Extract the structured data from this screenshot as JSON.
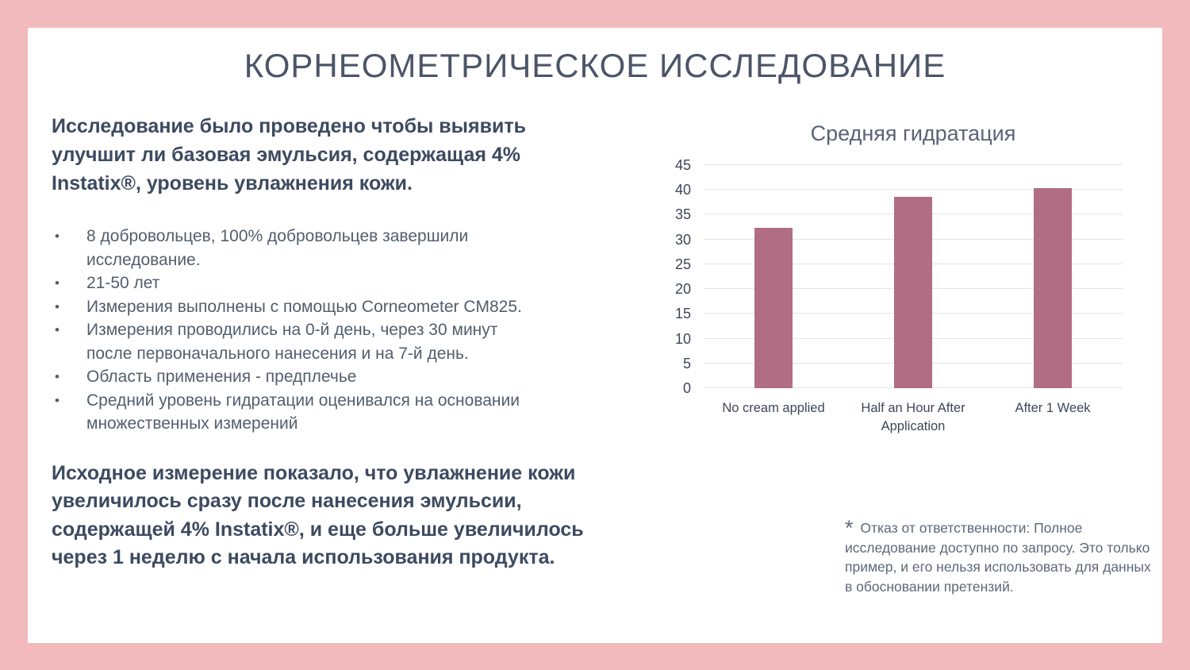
{
  "slide": {
    "title": "КОРНЕОМЕТРИЧЕСКОЕ ИССЛЕДОВАНИЕ",
    "intro": "Исследование было проведено чтобы выявить улучшит ли базовая эмульсия, содержащая 4% Instatix®, уровень увлажнения кожи.",
    "bullets": [
      "8 добровольцев, 100% добровольцев завершили исследование.",
      "21-50 лет",
      "Измерения выполнены с помощью Corneometer CM825.",
      "Измерения проводились на 0-й день, через 30 минут после первоначального нанесения и на 7-й день.",
      "Область применения - предплечье",
      "Средний уровень гидратации оценивался на основании множественных измерений"
    ],
    "conclusion": "Исходное измерение показало, что увлажнение кожи увеличилось сразу после нанесения эмульсии, содержащей 4% Instatix®, и еще больше увеличилось через 1 неделю с начала использования продукта.",
    "disclaimer_star": "*",
    "disclaimer": "Отказ от ответственности: Полное исследование доступно по запросу. Это только пример, и его нельзя использовать для данных в обосновании претензий."
  },
  "chart_data": {
    "type": "bar",
    "title": "Средняя гидратация",
    "categories": [
      "No cream applied",
      "Half an Hour After Application",
      "After 1 Week"
    ],
    "values": [
      32.4,
      38.6,
      40.4
    ],
    "xlabel": "",
    "ylabel": "",
    "ylim": [
      0,
      45
    ],
    "ytick_step": 5,
    "grid": true,
    "legend": "none",
    "bar_color": "#b16d83"
  },
  "colors": {
    "frame": "#f2babd",
    "background": "#ffffff",
    "heading_text": "#4c5568",
    "body_text": "#3d4a60",
    "bullet_text": "#525e6e",
    "gridline": "#e3e3ed"
  }
}
